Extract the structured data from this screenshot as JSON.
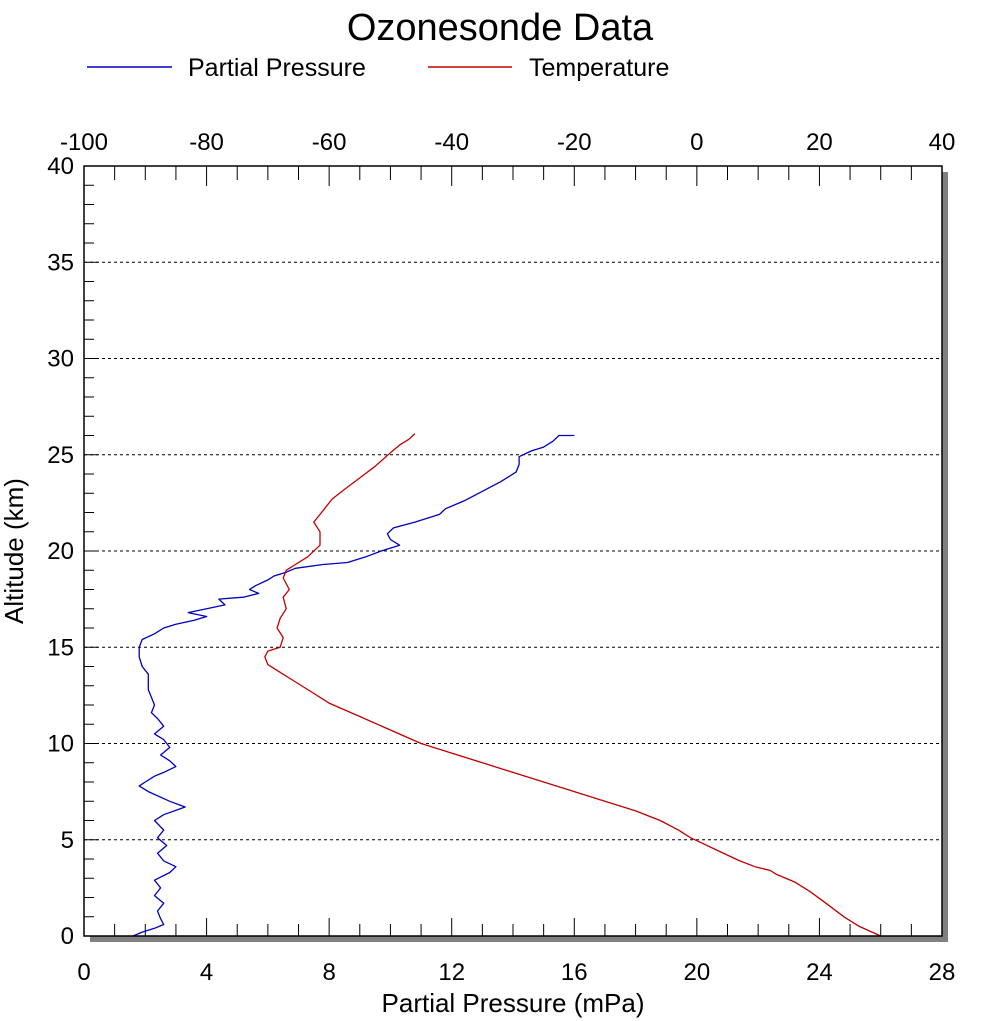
{
  "chart_data": {
    "type": "line",
    "title": "Ozonesonde Data",
    "xlabel": "Partial Pressure (mPa)",
    "ylabel": "Altitude (km)",
    "x_bottom": {
      "range": [
        0,
        28
      ],
      "ticks": [
        0,
        4,
        8,
        12,
        16,
        20,
        24,
        28
      ]
    },
    "x_top": {
      "range": [
        -100,
        40
      ],
      "ticks": [
        -100,
        -80,
        -60,
        -40,
        -20,
        0,
        20,
        40
      ]
    },
    "y": {
      "range": [
        0,
        40
      ],
      "ticks": [
        0,
        5,
        10,
        15,
        20,
        25,
        30,
        35,
        40
      ]
    },
    "grid": "horizontal dotted",
    "legend_position": "top",
    "series": [
      {
        "name": "Partial Pressure",
        "color": "#0000c0",
        "axis": "bottom",
        "points": [
          [
            1.6,
            0.0
          ],
          [
            1.9,
            0.2
          ],
          [
            2.3,
            0.4
          ],
          [
            2.6,
            0.6
          ],
          [
            2.5,
            0.9
          ],
          [
            2.4,
            1.3
          ],
          [
            2.6,
            1.7
          ],
          [
            2.3,
            2.1
          ],
          [
            2.5,
            2.5
          ],
          [
            2.3,
            2.9
          ],
          [
            2.8,
            3.3
          ],
          [
            3.0,
            3.6
          ],
          [
            2.6,
            3.9
          ],
          [
            2.4,
            4.3
          ],
          [
            2.7,
            4.7
          ],
          [
            2.4,
            5.1
          ],
          [
            2.6,
            5.5
          ],
          [
            2.3,
            6.0
          ],
          [
            2.6,
            6.3
          ],
          [
            3.3,
            6.7
          ],
          [
            2.8,
            7.0
          ],
          [
            2.1,
            7.5
          ],
          [
            1.8,
            7.8
          ],
          [
            2.0,
            8.0
          ],
          [
            2.3,
            8.3
          ],
          [
            2.6,
            8.5
          ],
          [
            3.0,
            8.8
          ],
          [
            2.8,
            9.1
          ],
          [
            2.5,
            9.4
          ],
          [
            2.8,
            9.8
          ],
          [
            2.6,
            10.2
          ],
          [
            2.3,
            10.5
          ],
          [
            2.6,
            10.9
          ],
          [
            2.4,
            11.3
          ],
          [
            2.2,
            11.6
          ],
          [
            2.3,
            12.0
          ],
          [
            2.2,
            12.4
          ],
          [
            2.1,
            12.8
          ],
          [
            2.1,
            13.2
          ],
          [
            2.1,
            13.6
          ],
          [
            1.9,
            14.0
          ],
          [
            1.8,
            14.5
          ],
          [
            1.8,
            15.0
          ],
          [
            1.9,
            15.4
          ],
          [
            2.3,
            15.7
          ],
          [
            2.6,
            16.0
          ],
          [
            3.0,
            16.2
          ],
          [
            3.6,
            16.4
          ],
          [
            4.0,
            16.6
          ],
          [
            3.4,
            16.8
          ],
          [
            4.0,
            17.0
          ],
          [
            4.6,
            17.2
          ],
          [
            4.4,
            17.5
          ],
          [
            5.2,
            17.6
          ],
          [
            5.7,
            17.8
          ],
          [
            5.4,
            18.0
          ],
          [
            5.6,
            18.2
          ],
          [
            6.0,
            18.5
          ],
          [
            6.2,
            18.7
          ],
          [
            6.6,
            18.9
          ],
          [
            6.9,
            19.1
          ],
          [
            7.8,
            19.3
          ],
          [
            8.6,
            19.4
          ],
          [
            9.2,
            19.7
          ],
          [
            9.7,
            20.0
          ],
          [
            10.3,
            20.3
          ],
          [
            10.0,
            20.6
          ],
          [
            9.9,
            20.9
          ],
          [
            10.1,
            21.2
          ],
          [
            10.8,
            21.5
          ],
          [
            11.6,
            21.9
          ],
          [
            11.8,
            22.2
          ],
          [
            12.4,
            22.6
          ],
          [
            13.0,
            23.1
          ],
          [
            13.6,
            23.6
          ],
          [
            14.1,
            24.1
          ],
          [
            14.2,
            24.5
          ],
          [
            14.2,
            24.9
          ],
          [
            14.6,
            25.2
          ],
          [
            15.0,
            25.4
          ],
          [
            15.3,
            25.7
          ],
          [
            15.5,
            26.0
          ],
          [
            16.0,
            26.0
          ]
        ]
      },
      {
        "name": "Temperature",
        "color": "#c00000",
        "axis": "top",
        "points": [
          [
            30.0,
            0.0
          ],
          [
            26.5,
            0.5
          ],
          [
            24.0,
            1.0
          ],
          [
            21.5,
            1.6
          ],
          [
            18.5,
            2.3
          ],
          [
            16.0,
            2.8
          ],
          [
            13.0,
            3.2
          ],
          [
            12.0,
            3.4
          ],
          [
            9.5,
            3.6
          ],
          [
            7.0,
            3.9
          ],
          [
            5.0,
            4.2
          ],
          [
            3.0,
            4.5
          ],
          [
            1.0,
            4.8
          ],
          [
            -1.0,
            5.1
          ],
          [
            -3.0,
            5.5
          ],
          [
            -6.0,
            6.0
          ],
          [
            -10.0,
            6.5
          ],
          [
            -15.0,
            7.0
          ],
          [
            -20.0,
            7.5
          ],
          [
            -25.0,
            8.0
          ],
          [
            -30.0,
            8.5
          ],
          [
            -35.0,
            9.0
          ],
          [
            -40.0,
            9.5
          ],
          [
            -45.0,
            10.0
          ],
          [
            -50.0,
            10.7
          ],
          [
            -55.0,
            11.4
          ],
          [
            -60.0,
            12.1
          ],
          [
            -63.0,
            12.7
          ],
          [
            -66.0,
            13.3
          ],
          [
            -68.0,
            13.7
          ],
          [
            -70.0,
            14.1
          ],
          [
            -70.5,
            14.5
          ],
          [
            -70.0,
            14.8
          ],
          [
            -68.0,
            15.0
          ],
          [
            -67.5,
            15.5
          ],
          [
            -68.5,
            16.0
          ],
          [
            -68.0,
            16.5
          ],
          [
            -67.0,
            17.0
          ],
          [
            -67.5,
            17.6
          ],
          [
            -66.5,
            18.0
          ],
          [
            -67.5,
            18.6
          ],
          [
            -67.0,
            19.0
          ],
          [
            -65.5,
            19.3
          ],
          [
            -63.5,
            19.7
          ],
          [
            -61.5,
            20.3
          ],
          [
            -61.5,
            21.0
          ],
          [
            -62.5,
            21.5
          ],
          [
            -61.0,
            22.1
          ],
          [
            -59.5,
            22.7
          ],
          [
            -57.5,
            23.2
          ],
          [
            -55.0,
            23.8
          ],
          [
            -52.5,
            24.4
          ],
          [
            -50.0,
            25.1
          ],
          [
            -48.5,
            25.5
          ],
          [
            -47.0,
            25.8
          ],
          [
            -46.0,
            26.1
          ]
        ]
      }
    ]
  }
}
